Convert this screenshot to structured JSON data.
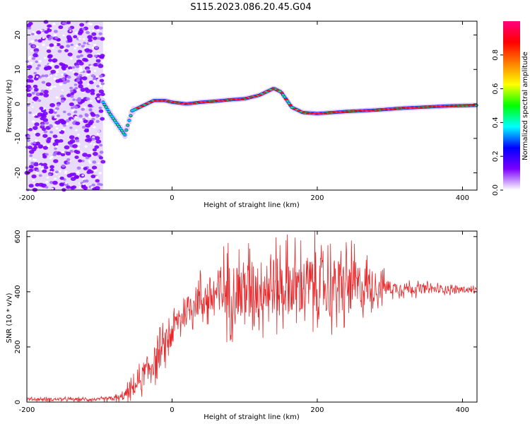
{
  "title": "S115.2023.086.20.45.G04",
  "chart_data": [
    {
      "type": "heatmap",
      "xlabel": "Height of straight line (km)",
      "ylabel": "Frequency (Hz)",
      "xlim": [
        -200,
        420
      ],
      "ylim": [
        -25,
        24
      ],
      "xticks": [
        -200,
        0,
        200,
        400
      ],
      "yticks": [
        -20,
        -10,
        0,
        10,
        20
      ],
      "noise_region_x": [
        -200,
        -95
      ],
      "colorbar": {
        "label": "Normalized spectral amplitude",
        "range": [
          0,
          1
        ],
        "ticks": [
          0.0,
          0.2,
          0.4,
          0.6,
          0.8
        ],
        "colormap": [
          "#ffffff",
          "#7b00ff",
          "#0000ff",
          "#00ffff",
          "#00ff00",
          "#ffff00",
          "#ff8000",
          "#ff0000",
          "#ff0080"
        ]
      },
      "ridge": {
        "x": [
          -95,
          -85,
          -75,
          -65,
          -55,
          -45,
          -35,
          -25,
          -10,
          0,
          20,
          40,
          60,
          80,
          100,
          120,
          140,
          150,
          165,
          180,
          200,
          220,
          240,
          260,
          280,
          300,
          320,
          340,
          360,
          380,
          400,
          420
        ],
        "y": [
          0.5,
          -3,
          -6,
          -9,
          -2,
          -1,
          0,
          1,
          1,
          0.5,
          0,
          0.5,
          0.8,
          1.2,
          1.5,
          2.5,
          4.5,
          3.5,
          -1,
          -2.5,
          -2.8,
          -2.5,
          -2.2,
          -2,
          -1.8,
          -1.5,
          -1.2,
          -1.0,
          -0.8,
          -0.6,
          -0.5,
          -0.4
        ]
      }
    },
    {
      "type": "line",
      "xlabel": "Height of straight line (km)",
      "ylabel": "SNR (10 * v/v)",
      "xlim": [
        -200,
        420
      ],
      "ylim": [
        0,
        620
      ],
      "xticks": [
        -200,
        0,
        200,
        400
      ],
      "yticks": [
        0,
        200,
        400,
        600
      ],
      "color": "#e8282a",
      "envelope": {
        "x": [
          -200,
          -100,
          -70,
          -50,
          -30,
          -10,
          0,
          10,
          30,
          50,
          70,
          100,
          150,
          200,
          250,
          280,
          300,
          350,
          400,
          420
        ],
        "y": [
          10,
          10,
          15,
          60,
          130,
          200,
          260,
          300,
          360,
          380,
          400,
          410,
          420,
          420,
          420,
          420,
          415,
          410,
          408,
          405
        ],
        "spread": [
          8,
          8,
          20,
          50,
          80,
          90,
          80,
          80,
          90,
          120,
          160,
          170,
          170,
          170,
          160,
          90,
          40,
          25,
          18,
          18
        ]
      }
    }
  ]
}
